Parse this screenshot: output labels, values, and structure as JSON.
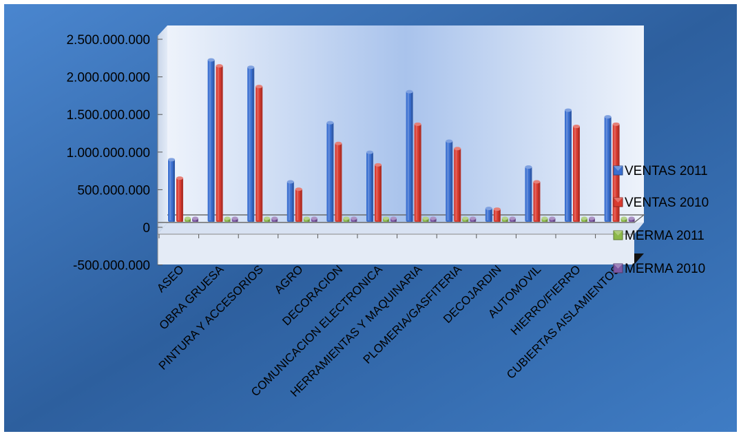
{
  "chart_data": {
    "type": "bar",
    "categories": [
      "ASEO",
      "OBRA GRUESA",
      "PINTURA Y ACCESORIOS",
      "AGRO",
      "DECORACION",
      "COMUNICACION ELECTRONICA",
      "HERRAMIENTAS Y MAQUINARIA",
      "PLOMERIA/GASFITERIA",
      "DECOJARDIN",
      "AUTOMOVIL",
      "HIERRO/FIERRO",
      "CUBIERTAS AISLAMIENTOS"
    ],
    "series": [
      {
        "name": "VENTAS 2011",
        "color": "#3a6fd0",
        "values": [
          850000000,
          2200000000,
          2100000000,
          550000000,
          1350000000,
          950000000,
          1770000000,
          1100000000,
          190000000,
          750000000,
          1520000000,
          1430000000
        ]
      },
      {
        "name": "VENTAS 2010",
        "color": "#d93b30",
        "values": [
          600000000,
          2120000000,
          1840000000,
          450000000,
          1070000000,
          780000000,
          1330000000,
          1000000000,
          180000000,
          550000000,
          1300000000,
          1330000000
        ]
      },
      {
        "name": "MERMA 2011",
        "color": "#8cb84a",
        "values": [
          5000000,
          5000000,
          5000000,
          5000000,
          5000000,
          5000000,
          5000000,
          5000000,
          5000000,
          5000000,
          5000000,
          5000000
        ]
      },
      {
        "name": "MERMA 2010",
        "color": "#7d58a3",
        "values": [
          5000000,
          5000000,
          5000000,
          5000000,
          5000000,
          5000000,
          5000000,
          5000000,
          5000000,
          5000000,
          5000000,
          5000000
        ]
      }
    ],
    "yticks": [
      "2.500.000.000",
      "2.000.000.000",
      "1.500.000.000",
      "1.000.000.000",
      "500.000.000",
      "0",
      "-500.000.000"
    ],
    "ylim": [
      -500000000,
      2500000000
    ],
    "legend_position": "right",
    "grid": true
  }
}
